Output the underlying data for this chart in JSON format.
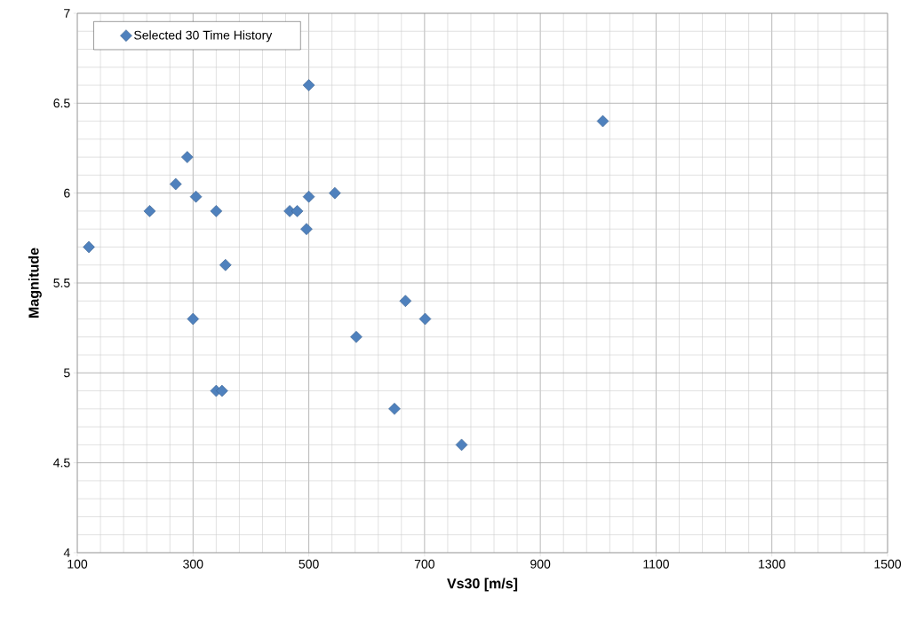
{
  "chart_data": {
    "type": "scatter",
    "xlabel": "Vs30 [m/s]",
    "ylabel": "Magnitude",
    "x": [
      120,
      225,
      270,
      290,
      305,
      340,
      356,
      300,
      340,
      350,
      500,
      500,
      545,
      467,
      480,
      496,
      667,
      701,
      582,
      648,
      764,
      1008
    ],
    "series": [
      {
        "name": "Selected 30 Time History",
        "color": "#4f81bd",
        "values": [
          5.7,
          5.9,
          6.05,
          6.2,
          5.98,
          5.9,
          5.6,
          5.3,
          4.9,
          4.9,
          6.6,
          5.98,
          6.0,
          5.9,
          5.9,
          5.8,
          5.4,
          5.3,
          5.2,
          4.8,
          4.6,
          6.4
        ]
      }
    ],
    "xlim": [
      100,
      1500
    ],
    "ylim": [
      4,
      7
    ],
    "xticks": [
      100,
      300,
      500,
      700,
      900,
      1100,
      1300,
      1500
    ],
    "yticks": [
      4,
      4.5,
      5,
      5.5,
      6,
      6.5,
      7
    ],
    "grid": true,
    "legend": "top left",
    "marker": "diamond"
  }
}
